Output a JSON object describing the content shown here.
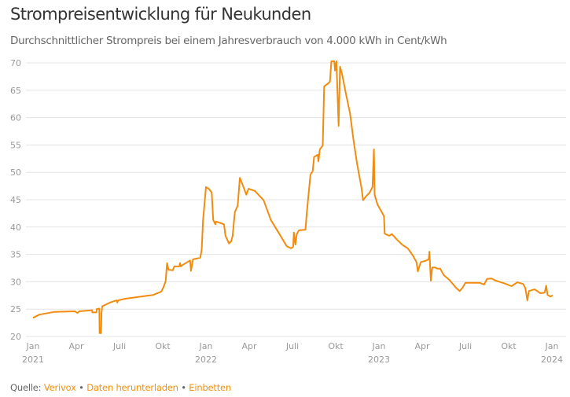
{
  "title": "Strompreisentwicklung für Neukunden",
  "subtitle": "Durchschnittlicher Strompreis bei einem Jahresverbrauch von 4.000 kWh in Cent/kWh",
  "footer": {
    "source_label": "Quelle:",
    "source_link": "Verivox",
    "separator": "•",
    "download_link": "Daten herunterladen",
    "embed_link": "Einbetten"
  },
  "colors": {
    "line": "#f28c0f",
    "grid": "#e3e3e3",
    "link": "#f29111"
  },
  "chart_data": {
    "type": "line",
    "title": "Strompreisentwicklung für Neukunden",
    "ylabel": "Cent/kWh",
    "xlabel": "",
    "x_unit": "months since Jan 2021",
    "xlim": [
      0,
      36
    ],
    "ylim": [
      20,
      70
    ],
    "grid": true,
    "y_ticks": [
      20,
      25,
      30,
      35,
      40,
      45,
      50,
      55,
      60,
      65,
      70
    ],
    "x_ticks": [
      {
        "m": 0,
        "label": "Jan",
        "year": "2021"
      },
      {
        "m": 3,
        "label": "Apr"
      },
      {
        "m": 6,
        "label": "Juli"
      },
      {
        "m": 9,
        "label": "Okt"
      },
      {
        "m": 12,
        "label": "Jan",
        "year": "2022"
      },
      {
        "m": 15,
        "label": "Apr"
      },
      {
        "m": 18,
        "label": "Juli"
      },
      {
        "m": 21,
        "label": "Okt"
      },
      {
        "m": 24,
        "label": "Jan",
        "year": "2023"
      },
      {
        "m": 27,
        "label": "Apr"
      },
      {
        "m": 30,
        "label": "Juli"
      },
      {
        "m": 33,
        "label": "Okt"
      },
      {
        "m": 36,
        "label": "Jan",
        "year": "2024"
      }
    ],
    "series": [
      {
        "name": "Strompreis",
        "points": [
          [
            0,
            23.4
          ],
          [
            0.44,
            24.0
          ],
          [
            1.5,
            24.5
          ],
          [
            2.9,
            24.6
          ],
          [
            3.1,
            24.3
          ],
          [
            3.2,
            24.6
          ],
          [
            3.7,
            24.7
          ],
          [
            4.1,
            24.8
          ],
          [
            4.12,
            24.4
          ],
          [
            4.4,
            24.4
          ],
          [
            4.42,
            25.0
          ],
          [
            4.6,
            25.1
          ],
          [
            4.62,
            20.6
          ],
          [
            4.72,
            20.6
          ],
          [
            4.75,
            24.2
          ],
          [
            4.8,
            25.5
          ],
          [
            5.35,
            26.2
          ],
          [
            5.8,
            26.6
          ],
          [
            5.85,
            26.2
          ],
          [
            5.9,
            26.6
          ],
          [
            6.4,
            26.9
          ],
          [
            7.5,
            27.3
          ],
          [
            8.35,
            27.6
          ],
          [
            8.9,
            28.2
          ],
          [
            9.05,
            29.0
          ],
          [
            9.2,
            30.1
          ],
          [
            9.3,
            33.4
          ],
          [
            9.4,
            32.2
          ],
          [
            9.7,
            32.1
          ],
          [
            9.8,
            32.8
          ],
          [
            10.15,
            32.8
          ],
          [
            10.2,
            33.4
          ],
          [
            10.25,
            32.8
          ],
          [
            10.4,
            33.1
          ],
          [
            10.9,
            33.9
          ],
          [
            10.96,
            32.0
          ],
          [
            11.1,
            34.1
          ],
          [
            11.6,
            34.4
          ],
          [
            11.7,
            35.8
          ],
          [
            11.8,
            41.3
          ],
          [
            12.0,
            47.3
          ],
          [
            12.2,
            47.0
          ],
          [
            12.4,
            46.3
          ],
          [
            12.5,
            41.3
          ],
          [
            12.65,
            40.5
          ],
          [
            12.7,
            41.0
          ],
          [
            13.25,
            40.5
          ],
          [
            13.35,
            38.4
          ],
          [
            13.6,
            37.0
          ],
          [
            13.75,
            37.4
          ],
          [
            13.85,
            38.4
          ],
          [
            14.0,
            42.7
          ],
          [
            14.2,
            43.9
          ],
          [
            14.35,
            49.0
          ],
          [
            14.6,
            47.3
          ],
          [
            14.8,
            45.9
          ],
          [
            14.95,
            47.0
          ],
          [
            15.4,
            46.6
          ],
          [
            16.0,
            44.9
          ],
          [
            16.5,
            41.3
          ],
          [
            17.1,
            38.7
          ],
          [
            17.6,
            36.5
          ],
          [
            17.9,
            36.1
          ],
          [
            18.05,
            36.4
          ],
          [
            18.1,
            39.0
          ],
          [
            18.2,
            36.8
          ],
          [
            18.3,
            38.7
          ],
          [
            18.45,
            39.4
          ],
          [
            18.9,
            39.5
          ],
          [
            19.0,
            42.7
          ],
          [
            19.1,
            45.6
          ],
          [
            19.25,
            49.6
          ],
          [
            19.4,
            50.2
          ],
          [
            19.5,
            52.8
          ],
          [
            19.75,
            53.2
          ],
          [
            19.8,
            52.0
          ],
          [
            19.9,
            54.2
          ],
          [
            20.1,
            54.9
          ],
          [
            20.2,
            65.7
          ],
          [
            20.5,
            66.3
          ],
          [
            20.6,
            66.6
          ],
          [
            20.7,
            70.3
          ],
          [
            20.9,
            70.3
          ],
          [
            20.95,
            68.6
          ],
          [
            21.05,
            70.3
          ],
          [
            21.2,
            58.5
          ],
          [
            21.3,
            69.3
          ],
          [
            21.45,
            67.8
          ],
          [
            21.7,
            64.5
          ],
          [
            22.0,
            60.7
          ],
          [
            22.25,
            55.6
          ],
          [
            22.5,
            51.3
          ],
          [
            22.8,
            47.0
          ],
          [
            22.9,
            44.9
          ],
          [
            23.1,
            45.6
          ],
          [
            23.35,
            46.3
          ],
          [
            23.55,
            47.3
          ],
          [
            23.65,
            54.2
          ],
          [
            23.7,
            45.9
          ],
          [
            23.9,
            44.1
          ],
          [
            24.2,
            42.7
          ],
          [
            24.35,
            42.0
          ],
          [
            24.4,
            38.8
          ],
          [
            24.7,
            38.4
          ],
          [
            24.9,
            38.7
          ],
          [
            25.25,
            37.7
          ],
          [
            25.65,
            36.7
          ],
          [
            26.0,
            36.1
          ],
          [
            26.35,
            34.8
          ],
          [
            26.6,
            33.6
          ],
          [
            26.7,
            31.9
          ],
          [
            26.9,
            33.6
          ],
          [
            27.2,
            33.8
          ],
          [
            27.45,
            34.1
          ],
          [
            27.5,
            35.5
          ],
          [
            27.6,
            30.2
          ],
          [
            27.7,
            32.6
          ],
          [
            27.9,
            32.6
          ],
          [
            28.05,
            32.4
          ],
          [
            28.25,
            32.4
          ],
          [
            28.5,
            31.2
          ],
          [
            28.9,
            30.3
          ],
          [
            29.35,
            28.9
          ],
          [
            29.6,
            28.3
          ],
          [
            29.8,
            28.9
          ],
          [
            30.0,
            29.8
          ],
          [
            30.45,
            29.8
          ],
          [
            31.0,
            29.8
          ],
          [
            31.3,
            29.5
          ],
          [
            31.5,
            30.5
          ],
          [
            31.8,
            30.6
          ],
          [
            32.1,
            30.2
          ],
          [
            32.6,
            29.8
          ],
          [
            33.2,
            29.2
          ],
          [
            33.6,
            29.9
          ],
          [
            34.0,
            29.6
          ],
          [
            34.15,
            28.9
          ],
          [
            34.3,
            26.6
          ],
          [
            34.4,
            28.3
          ],
          [
            34.8,
            28.6
          ],
          [
            35.2,
            27.9
          ],
          [
            35.5,
            28.0
          ],
          [
            35.6,
            29.3
          ],
          [
            35.7,
            27.6
          ],
          [
            35.9,
            27.3
          ],
          [
            36.05,
            27.5
          ]
        ]
      }
    ]
  }
}
